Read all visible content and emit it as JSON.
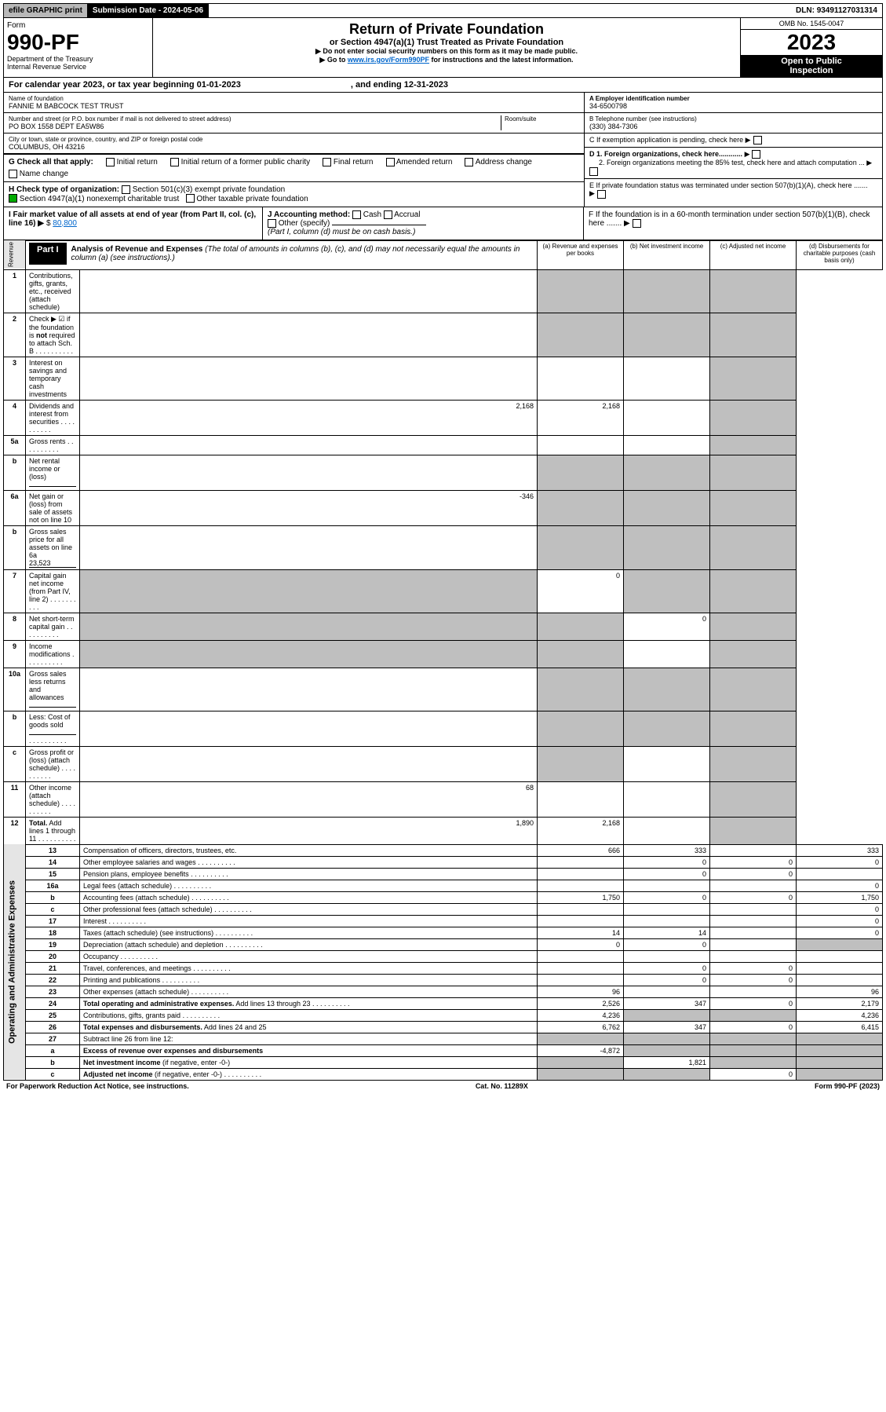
{
  "topbar": {
    "efile": "efile GRAPHIC print",
    "subdate_lbl": "Submission Date - ",
    "subdate": "2024-05-06",
    "dln_lbl": "DLN: ",
    "dln": "93491127031314"
  },
  "header": {
    "form_word": "Form",
    "form_num": "990-PF",
    "dept": "Department of the Treasury",
    "irs": "Internal Revenue Service",
    "title": "Return of Private Foundation",
    "subtitle": "or Section 4947(a)(1) Trust Treated as Private Foundation",
    "note1": "▶ Do not enter social security numbers on this form as it may be made public.",
    "note2_pre": "▶ Go to ",
    "note2_link": "www.irs.gov/Form990PF",
    "note2_post": " for instructions and the latest information.",
    "omb": "OMB No. 1545-0047",
    "year": "2023",
    "inspect1": "Open to Public",
    "inspect2": "Inspection"
  },
  "calyear": {
    "text": "For calendar year 2023, or tax year beginning 01-01-2023",
    "end": ", and ending 12-31-2023"
  },
  "entity": {
    "name_lbl": "Name of foundation",
    "name": "FANNIE M BABCOCK TEST TRUST",
    "addr_lbl": "Number and street (or P.O. box number if mail is not delivered to street address)",
    "addr": "PO BOX 1558 DEPT EA5W86",
    "room_lbl": "Room/suite",
    "city_lbl": "City or town, state or province, country, and ZIP or foreign postal code",
    "city": "COLUMBUS, OH  43216",
    "ein_lbl": "A Employer identification number",
    "ein": "34-6500798",
    "phone_lbl": "B Telephone number (see instructions)",
    "phone": "(330) 384-7306",
    "c_lbl": "C If exemption application is pending, check here",
    "d1": "D 1. Foreign organizations, check here............",
    "d2": "2. Foreign organizations meeting the 85% test, check here and attach computation ...",
    "e": "E  If private foundation status was terminated under section 507(b)(1)(A), check here .......",
    "f": "F  If the foundation is in a 60-month termination under section 507(b)(1)(B), check here .......",
    "g_lbl": "G Check all that apply:",
    "g_opts": [
      "Initial return",
      "Initial return of a former public charity",
      "Final return",
      "Amended return",
      "Address change",
      "Name change"
    ],
    "h_lbl": "H Check type of organization:",
    "h1": "Section 501(c)(3) exempt private foundation",
    "h2": "Section 4947(a)(1) nonexempt charitable trust",
    "h3": "Other taxable private foundation",
    "i": "I Fair market value of all assets at end of year (from Part II, col. (c), line 16)",
    "i_val": "80,800",
    "j": "J Accounting method:",
    "j_opts": [
      "Cash",
      "Accrual",
      "Other (specify)"
    ],
    "j_note": "(Part I, column (d) must be on cash basis.)"
  },
  "part1": {
    "label": "Part I",
    "title": "Analysis of Revenue and Expenses",
    "title_note": "(The total of amounts in columns (b), (c), and (d) may not necessarily equal the amounts in column (a) (see instructions).)",
    "col_a": "(a)  Revenue and expenses per books",
    "col_b": "(b)  Net investment income",
    "col_c": "(c)  Adjusted net income",
    "col_d": "(d)  Disbursements for charitable purposes (cash basis only)",
    "side_rev": "Revenue",
    "side_exp": "Operating and Administrative Expenses"
  },
  "lines": [
    {
      "n": "1",
      "d": "Contributions, gifts, grants, etc., received (attach schedule)",
      "a": "",
      "b": "",
      "c": "",
      "dd": "",
      "sb": 1,
      "sc": 1,
      "sd": 1
    },
    {
      "n": "2",
      "d": "Check ▶ ☑ if the foundation is <b>not</b> required to attach Sch. B",
      "dots": 1,
      "a": "",
      "sb": 1,
      "sc": 1,
      "sd": 1,
      "b": "",
      "c": "",
      "dd": ""
    },
    {
      "n": "3",
      "d": "Interest on savings and temporary cash investments",
      "a": "",
      "b": "",
      "c": "",
      "dd": "",
      "sd": 1
    },
    {
      "n": "4",
      "d": "Dividends and interest from securities",
      "dots": 1,
      "a": "2,168",
      "b": "2,168",
      "c": "",
      "dd": "",
      "sd": 1
    },
    {
      "n": "5a",
      "d": "Gross rents",
      "dots": 1,
      "a": "",
      "b": "",
      "c": "",
      "dd": "",
      "sd": 1
    },
    {
      "n": "b",
      "d": "Net rental income or (loss)",
      "mini": 1,
      "a": "",
      "sb": 1,
      "sc": 1,
      "sd": 1,
      "b": "",
      "c": "",
      "dd": ""
    },
    {
      "n": "6a",
      "d": "Net gain or (loss) from sale of assets not on line 10",
      "a": "-346",
      "sb": 1,
      "sc": 1,
      "sd": 1,
      "b": "",
      "c": "",
      "dd": ""
    },
    {
      "n": "b",
      "d": "Gross sales price for all assets on line 6a",
      "mini": 1,
      "mv": "23,523",
      "a": "",
      "sb": 1,
      "sc": 1,
      "sd": 1,
      "b": "",
      "c": "",
      "dd": ""
    },
    {
      "n": "7",
      "d": "Capital gain net income (from Part IV, line 2)",
      "dots": 1,
      "a": "",
      "b": "0",
      "c": "",
      "dd": "",
      "sa": 1,
      "sc": 1,
      "sd": 1
    },
    {
      "n": "8",
      "d": "Net short-term capital gain",
      "dots": 1,
      "a": "",
      "b": "",
      "c": "0",
      "dd": "",
      "sa": 1,
      "sb": 1,
      "sd": 1
    },
    {
      "n": "9",
      "d": "Income modifications",
      "dots": 1,
      "a": "",
      "b": "",
      "c": "",
      "dd": "",
      "sa": 1,
      "sb": 1,
      "sd": 1
    },
    {
      "n": "10a",
      "d": "Gross sales less returns and allowances",
      "mini": 1,
      "a": "",
      "sb": 1,
      "sc": 1,
      "sd": 1,
      "b": "",
      "c": "",
      "dd": ""
    },
    {
      "n": "b",
      "d": "Less: Cost of goods sold",
      "dots": 1,
      "mini": 1,
      "a": "",
      "sb": 1,
      "sc": 1,
      "sd": 1,
      "b": "",
      "c": "",
      "dd": ""
    },
    {
      "n": "c",
      "d": "Gross profit or (loss) (attach schedule)",
      "dots": 1,
      "a": "",
      "b": "",
      "c": "",
      "dd": "",
      "sb": 1,
      "sd": 1
    },
    {
      "n": "11",
      "d": "Other income (attach schedule)",
      "dots": 1,
      "a": "68",
      "b": "",
      "c": "",
      "dd": "",
      "sd": 1
    },
    {
      "n": "12",
      "d": "<b>Total.</b> Add lines 1 through 11",
      "dots": 1,
      "a": "1,890",
      "b": "2,168",
      "c": "",
      "dd": "",
      "sd": 1
    },
    {
      "n": "13",
      "d": "Compensation of officers, directors, trustees, etc.",
      "a": "666",
      "b": "333",
      "c": "",
      "dd": "333"
    },
    {
      "n": "14",
      "d": "Other employee salaries and wages",
      "dots": 1,
      "a": "",
      "b": "0",
      "c": "0",
      "dd": "0"
    },
    {
      "n": "15",
      "d": "Pension plans, employee benefits",
      "dots": 1,
      "a": "",
      "b": "0",
      "c": "0",
      "dd": ""
    },
    {
      "n": "16a",
      "d": "Legal fees (attach schedule)",
      "dots": 1,
      "a": "",
      "b": "",
      "c": "",
      "dd": "0"
    },
    {
      "n": "b",
      "d": "Accounting fees (attach schedule)",
      "dots": 1,
      "a": "1,750",
      "b": "0",
      "c": "0",
      "dd": "1,750"
    },
    {
      "n": "c",
      "d": "Other professional fees (attach schedule)",
      "dots": 1,
      "a": "",
      "b": "",
      "c": "",
      "dd": "0"
    },
    {
      "n": "17",
      "d": "Interest",
      "dots": 1,
      "a": "",
      "b": "",
      "c": "",
      "dd": "0"
    },
    {
      "n": "18",
      "d": "Taxes (attach schedule) (see instructions)",
      "dots": 1,
      "a": "14",
      "b": "14",
      "c": "",
      "dd": "0"
    },
    {
      "n": "19",
      "d": "Depreciation (attach schedule) and depletion",
      "dots": 1,
      "a": "0",
      "b": "0",
      "c": "",
      "dd": "",
      "sd": 1
    },
    {
      "n": "20",
      "d": "Occupancy",
      "dots": 1,
      "a": "",
      "b": "",
      "c": "",
      "dd": ""
    },
    {
      "n": "21",
      "d": "Travel, conferences, and meetings",
      "dots": 1,
      "a": "",
      "b": "0",
      "c": "0",
      "dd": ""
    },
    {
      "n": "22",
      "d": "Printing and publications",
      "dots": 1,
      "a": "",
      "b": "0",
      "c": "0",
      "dd": ""
    },
    {
      "n": "23",
      "d": "Other expenses (attach schedule)",
      "dots": 1,
      "a": "96",
      "b": "",
      "c": "",
      "dd": "96"
    },
    {
      "n": "24",
      "d": "<b>Total operating and administrative expenses.</b> Add lines 13 through 23",
      "dots": 1,
      "a": "2,526",
      "b": "347",
      "c": "0",
      "dd": "2,179"
    },
    {
      "n": "25",
      "d": "Contributions, gifts, grants paid",
      "dots": 1,
      "a": "4,236",
      "b": "",
      "c": "",
      "dd": "4,236",
      "sb": 1,
      "sc": 1
    },
    {
      "n": "26",
      "d": "<b>Total expenses and disbursements.</b> Add lines 24 and 25",
      "a": "6,762",
      "b": "347",
      "c": "0",
      "dd": "6,415"
    },
    {
      "n": "27",
      "d": "Subtract line 26 from line 12:",
      "a": "",
      "b": "",
      "c": "",
      "dd": "",
      "sa": 1,
      "sb": 1,
      "sc": 1,
      "sd": 1
    },
    {
      "n": "a",
      "d": "<b>Excess of revenue over expenses and disbursements</b>",
      "a": "-4,872",
      "b": "",
      "c": "",
      "dd": "",
      "sb": 1,
      "sc": 1,
      "sd": 1
    },
    {
      "n": "b",
      "d": "<b>Net investment income</b> (if negative, enter -0-)",
      "a": "",
      "b": "1,821",
      "c": "",
      "dd": "",
      "sa": 1,
      "sc": 1,
      "sd": 1
    },
    {
      "n": "c",
      "d": "<b>Adjusted net income</b> (if negative, enter -0-)",
      "dots": 1,
      "a": "",
      "b": "",
      "c": "0",
      "dd": "",
      "sa": 1,
      "sb": 1,
      "sd": 1
    }
  ],
  "footer": {
    "left": "For Paperwork Reduction Act Notice, see instructions.",
    "mid": "Cat. No. 11289X",
    "right": "Form 990-PF (2023)"
  }
}
